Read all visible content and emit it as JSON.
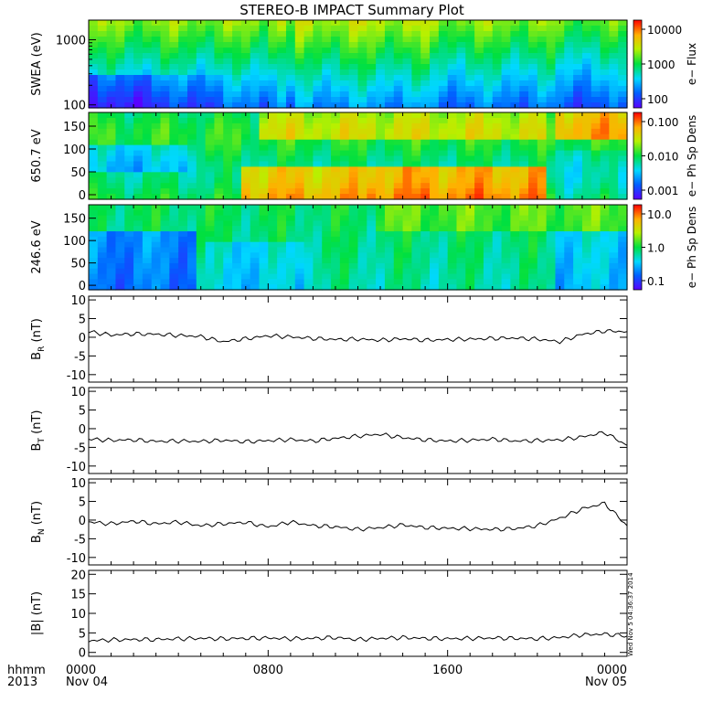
{
  "title": "STEREO-B IMPACT Summary Plot",
  "footer": {
    "hhmm": "hhmm",
    "year": "2013",
    "start_label": "Nov 04",
    "end_label": "Nov 05",
    "x_ticks": [
      "0000",
      "0800",
      "1600",
      "0000"
    ],
    "timestamp": "Wed Nov  5 04:36:37 2014"
  },
  "chart_data": [
    {
      "type": "heatmap",
      "ylabel": "SWEA (eV)",
      "scale": "log",
      "ylim": [
        90,
        2000
      ],
      "yticks": [
        "100",
        "1000"
      ],
      "colorbar": {
        "label": "e− Flux",
        "ticks": [
          "100",
          "1000",
          "10000"
        ]
      }
    },
    {
      "type": "heatmap",
      "ylabel": "650.7 eV",
      "ylim": [
        -10,
        180
      ],
      "yticks": [
        "0",
        "50",
        "100",
        "150"
      ],
      "colorbar": {
        "label": "e− Ph Sp Dens",
        "ticks": [
          "0.001",
          "0.010",
          "0.100"
        ]
      }
    },
    {
      "type": "heatmap",
      "ylabel": "246.6 eV",
      "ylim": [
        -10,
        180
      ],
      "yticks": [
        "0",
        "50",
        "100",
        "150"
      ],
      "colorbar": {
        "label": "e− Ph Sp Dens",
        "ticks": [
          "0.1",
          "1.0",
          "10.0"
        ]
      }
    },
    {
      "type": "line",
      "ylabel": "B",
      "ylabel_sub": "R",
      "ylabel_unit": "(nT)",
      "ylim": [
        -12,
        11
      ],
      "yticks": [
        "-10",
        "-5",
        "0",
        "5",
        "10"
      ],
      "x": [
        0,
        1,
        2,
        3,
        4,
        5,
        6,
        7,
        8,
        9,
        10,
        11,
        12,
        13,
        14,
        15,
        16,
        17,
        18,
        19,
        20,
        21,
        22,
        23,
        24
      ],
      "values": [
        1.5,
        0.6,
        0.9,
        0.8,
        0.5,
        0.2,
        -1.2,
        -0.4,
        0.4,
        0.1,
        -0.3,
        -0.6,
        -0.5,
        -0.8,
        -0.4,
        -0.8,
        -0.6,
        -0.5,
        -0.3,
        -0.2,
        -0.5,
        -1.2,
        0.8,
        1.7,
        1.5
      ]
    },
    {
      "type": "line",
      "ylabel": "B",
      "ylabel_sub": "T",
      "ylabel_unit": "(nT)",
      "ylim": [
        -12,
        11
      ],
      "yticks": [
        "-10",
        "-5",
        "0",
        "5",
        "10"
      ],
      "x": [
        0,
        1,
        2,
        3,
        4,
        5,
        6,
        7,
        8,
        9,
        10,
        11,
        12,
        13,
        14,
        15,
        16,
        17,
        18,
        19,
        20,
        21,
        22,
        23,
        24
      ],
      "values": [
        -2.8,
        -3.1,
        -3.0,
        -3.4,
        -3.3,
        -3.4,
        -3.1,
        -3.5,
        -3.2,
        -2.9,
        -3.3,
        -2.6,
        -2.0,
        -1.5,
        -2.4,
        -3.0,
        -3.3,
        -3.1,
        -2.8,
        -3.3,
        -3.2,
        -3.0,
        -2.2,
        -1.0,
        -4.5
      ]
    },
    {
      "type": "line",
      "ylabel": "B",
      "ylabel_sub": "N",
      "ylabel_unit": "(nT)",
      "ylim": [
        -12,
        11
      ],
      "yticks": [
        "-10",
        "-5",
        "0",
        "5",
        "10"
      ],
      "x": [
        0,
        1,
        2,
        3,
        4,
        5,
        6,
        7,
        8,
        9,
        10,
        11,
        12,
        13,
        14,
        15,
        16,
        17,
        18,
        19,
        20,
        21,
        22,
        23,
        24
      ],
      "values": [
        -0.5,
        -1.0,
        -0.3,
        -1.0,
        -0.5,
        -1.5,
        -1.0,
        -0.6,
        -1.8,
        -0.5,
        -1.5,
        -1.8,
        -2.5,
        -2.0,
        -1.3,
        -2.0,
        -2.2,
        -2.3,
        -2.5,
        -2.3,
        -1.5,
        0.5,
        3.0,
        4.5,
        -1.5
      ]
    },
    {
      "type": "line",
      "ylabel": "|B| (nT)",
      "ylim": [
        -1,
        21
      ],
      "yticks": [
        "0",
        "5",
        "10",
        "15",
        "20"
      ],
      "x": [
        0,
        1,
        2,
        3,
        4,
        5,
        6,
        7,
        8,
        9,
        10,
        11,
        12,
        13,
        14,
        15,
        16,
        17,
        18,
        19,
        20,
        21,
        22,
        23,
        24
      ],
      "values": [
        3.0,
        3.2,
        3.3,
        3.3,
        3.5,
        3.6,
        3.5,
        3.6,
        3.7,
        3.5,
        3.6,
        3.8,
        3.3,
        3.6,
        3.8,
        3.6,
        3.5,
        3.6,
        3.7,
        3.6,
        3.5,
        3.8,
        4.5,
        4.7,
        4.2
      ]
    }
  ]
}
